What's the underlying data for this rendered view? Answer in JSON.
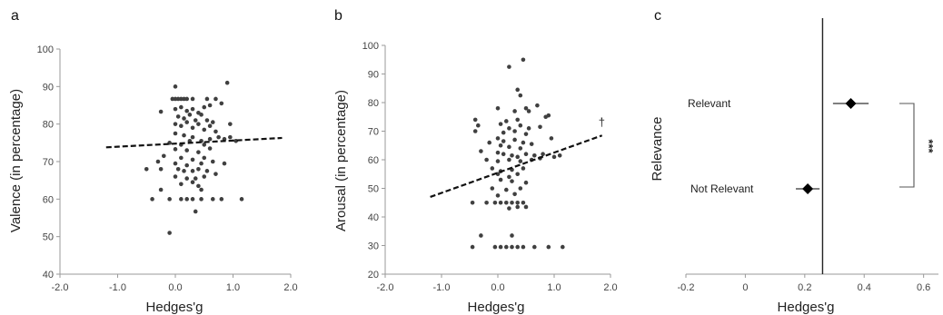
{
  "chart_data": [
    {
      "panel": "a",
      "type": "scatter",
      "xlabel": "Hedges'g",
      "ylabel": "Valence (in percentage)",
      "xlim": [
        -2.0,
        2.0
      ],
      "ylim": [
        40,
        100
      ],
      "xticks": [
        -2.0,
        -1.0,
        0.0,
        1.0,
        2.0
      ],
      "xtick_labels": [
        "-2.0",
        "-1.0",
        "0.0",
        "1.0",
        "2.0"
      ],
      "yticks": [
        40,
        50,
        60,
        70,
        80,
        90,
        100
      ],
      "ytick_labels": [
        "40",
        "50",
        "60",
        "70",
        "80",
        "90",
        "100"
      ],
      "trendline": {
        "x": [
          -1.2,
          1.85
        ],
        "y": [
          73.8,
          76.3
        ],
        "style": "dashed"
      },
      "points": [
        [
          -0.05,
          86.7
        ],
        [
          0.0,
          86.7
        ],
        [
          0.05,
          86.7
        ],
        [
          0.1,
          86.7
        ],
        [
          0.15,
          86.7
        ],
        [
          0.2,
          86.7
        ],
        [
          0.3,
          86.7
        ],
        [
          0.55,
          86.7
        ],
        [
          0.7,
          86.7
        ],
        [
          0.0,
          90.0
        ],
        [
          0.9,
          91.0
        ],
        [
          0.0,
          84.0
        ],
        [
          0.1,
          84.5
        ],
        [
          0.2,
          83.5
        ],
        [
          0.3,
          84.0
        ],
        [
          0.4,
          83.0
        ],
        [
          0.5,
          84.5
        ],
        [
          0.6,
          85.0
        ],
        [
          0.8,
          85.5
        ],
        [
          -0.25,
          83.3
        ],
        [
          0.05,
          82.0
        ],
        [
          0.15,
          81.5
        ],
        [
          0.25,
          82.5
        ],
        [
          0.35,
          81.0
        ],
        [
          0.45,
          82.5
        ],
        [
          0.55,
          81.0
        ],
        [
          0.65,
          80.5
        ],
        [
          0.95,
          80.0
        ],
        [
          0.0,
          80.0
        ],
        [
          0.1,
          79.5
        ],
        [
          0.2,
          80.5
        ],
        [
          0.3,
          79.0
        ],
        [
          0.4,
          80.0
        ],
        [
          0.5,
          78.5
        ],
        [
          0.6,
          79.5
        ],
        [
          0.7,
          78.0
        ],
        [
          0.0,
          77.5
        ],
        [
          0.15,
          77.0
        ],
        [
          0.3,
          76.5
        ],
        [
          0.45,
          75.5
        ],
        [
          0.6,
          76.0
        ],
        [
          0.75,
          76.5
        ],
        [
          0.85,
          76.0
        ],
        [
          0.95,
          76.5
        ],
        [
          1.05,
          75.5
        ],
        [
          -0.1,
          75.0
        ],
        [
          0.1,
          74.5
        ],
        [
          0.25,
          75.5
        ],
        [
          0.5,
          74.5
        ],
        [
          0.0,
          73.3
        ],
        [
          0.2,
          73.0
        ],
        [
          0.4,
          72.5
        ],
        [
          0.6,
          73.5
        ],
        [
          -0.2,
          71.5
        ],
        [
          0.1,
          71.0
        ],
        [
          0.3,
          70.5
        ],
        [
          0.5,
          71.0
        ],
        [
          -0.3,
          70.0
        ],
        [
          0.0,
          69.5
        ],
        [
          0.2,
          69.0
        ],
        [
          0.45,
          69.5
        ],
        [
          0.65,
          70.0
        ],
        [
          0.85,
          69.5
        ],
        [
          -0.5,
          68.0
        ],
        [
          -0.25,
          68.0
        ],
        [
          0.05,
          68.0
        ],
        [
          0.15,
          67.5
        ],
        [
          0.3,
          67.5
        ],
        [
          0.4,
          68.0
        ],
        [
          0.55,
          67.5
        ],
        [
          0.7,
          66.7
        ],
        [
          0.0,
          66.0
        ],
        [
          0.2,
          65.5
        ],
        [
          0.35,
          65.5
        ],
        [
          0.5,
          66.0
        ],
        [
          0.1,
          64.0
        ],
        [
          0.3,
          64.5
        ],
        [
          0.4,
          63.5
        ],
        [
          -0.25,
          62.5
        ],
        [
          0.45,
          62.5
        ],
        [
          -0.4,
          60.0
        ],
        [
          -0.1,
          60.0
        ],
        [
          0.1,
          60.0
        ],
        [
          0.2,
          60.0
        ],
        [
          0.3,
          60.0
        ],
        [
          0.45,
          60.0
        ],
        [
          0.65,
          60.0
        ],
        [
          0.8,
          60.0
        ],
        [
          1.15,
          60.0
        ],
        [
          0.35,
          56.7
        ],
        [
          -0.1,
          51.0
        ]
      ]
    },
    {
      "panel": "b",
      "type": "scatter",
      "xlabel": "Hedges'g",
      "ylabel": "Arousal (in percentage)",
      "xlim": [
        -2.0,
        2.0
      ],
      "ylim": [
        20,
        100
      ],
      "xticks": [
        -2.0,
        -1.0,
        0.0,
        1.0,
        2.0
      ],
      "xtick_labels": [
        "-2.0",
        "-1.0",
        "0.0",
        "1.0",
        "2.0"
      ],
      "yticks": [
        20,
        30,
        40,
        50,
        60,
        70,
        80,
        90,
        100
      ],
      "ytick_labels": [
        "20",
        "30",
        "40",
        "50",
        "60",
        "70",
        "80",
        "90",
        "100"
      ],
      "trendline": {
        "x": [
          -1.2,
          1.85
        ],
        "y": [
          47.0,
          68.5
        ],
        "style": "dashed"
      },
      "annotation": "†",
      "points": [
        [
          0.2,
          92.5
        ],
        [
          0.45,
          95.0
        ],
        [
          0.35,
          84.5
        ],
        [
          0.4,
          82.5
        ],
        [
          0.0,
          78.0
        ],
        [
          0.3,
          77.0
        ],
        [
          0.5,
          78.0
        ],
        [
          0.55,
          77.0
        ],
        [
          0.7,
          79.0
        ],
        [
          0.9,
          75.5
        ],
        [
          -0.4,
          74.0
        ],
        [
          0.15,
          73.5
        ],
        [
          0.35,
          74.0
        ],
        [
          0.85,
          75.0
        ],
        [
          -0.35,
          72.0
        ],
        [
          0.05,
          72.5
        ],
        [
          0.2,
          71.0
        ],
        [
          0.4,
          72.0
        ],
        [
          0.55,
          71.0
        ],
        [
          0.75,
          71.5
        ],
        [
          -0.4,
          70.0
        ],
        [
          0.1,
          69.5
        ],
        [
          0.3,
          70.0
        ],
        [
          0.5,
          69.0
        ],
        [
          0.0,
          67.5
        ],
        [
          0.1,
          66.5
        ],
        [
          0.3,
          67.0
        ],
        [
          0.45,
          66.0
        ],
        [
          0.95,
          67.5
        ],
        [
          -0.15,
          66.0
        ],
        [
          0.05,
          65.0
        ],
        [
          0.2,
          64.5
        ],
        [
          0.4,
          64.0
        ],
        [
          0.6,
          65.5
        ],
        [
          -0.3,
          63.0
        ],
        [
          0.0,
          62.5
        ],
        [
          0.1,
          62.0
        ],
        [
          0.25,
          61.5
        ],
        [
          0.35,
          61.0
        ],
        [
          0.5,
          62.0
        ],
        [
          0.65,
          61.5
        ],
        [
          0.8,
          62.0
        ],
        [
          1.0,
          61.0
        ],
        [
          1.1,
          61.5
        ],
        [
          -0.2,
          60.0
        ],
        [
          0.0,
          59.5
        ],
        [
          0.2,
          60.0
        ],
        [
          0.4,
          59.5
        ],
        [
          0.6,
          60.0
        ],
        [
          0.75,
          60.5
        ],
        [
          -0.1,
          57.0
        ],
        [
          0.05,
          56.0
        ],
        [
          0.25,
          56.5
        ],
        [
          0.45,
          57.0
        ],
        [
          0.0,
          55.0
        ],
        [
          0.2,
          54.0
        ],
        [
          0.35,
          55.0
        ],
        [
          0.05,
          53.0
        ],
        [
          0.25,
          52.5
        ],
        [
          0.5,
          52.0
        ],
        [
          -0.1,
          50.0
        ],
        [
          0.15,
          49.5
        ],
        [
          0.4,
          50.0
        ],
        [
          0.0,
          47.5
        ],
        [
          0.3,
          48.0
        ],
        [
          -0.45,
          45.0
        ],
        [
          -0.2,
          45.0
        ],
        [
          -0.05,
          45.0
        ],
        [
          0.05,
          45.0
        ],
        [
          0.15,
          45.0
        ],
        [
          0.25,
          45.0
        ],
        [
          0.35,
          45.0
        ],
        [
          0.45,
          45.0
        ],
        [
          0.5,
          43.5
        ],
        [
          0.2,
          43.0
        ],
        [
          0.35,
          43.5
        ],
        [
          -0.3,
          33.5
        ],
        [
          0.25,
          33.5
        ],
        [
          -0.45,
          29.5
        ],
        [
          -0.05,
          29.5
        ],
        [
          0.05,
          29.5
        ],
        [
          0.15,
          29.5
        ],
        [
          0.25,
          29.5
        ],
        [
          0.35,
          29.5
        ],
        [
          0.45,
          29.5
        ],
        [
          0.65,
          29.5
        ],
        [
          0.9,
          29.5
        ],
        [
          1.15,
          29.5
        ]
      ]
    },
    {
      "panel": "c",
      "type": "forest",
      "xlabel": "Hedges'g",
      "ylabel": "Relevance",
      "xlim": [
        -0.2,
        0.65
      ],
      "xticks": [
        -0.2,
        0.0,
        0.2,
        0.4,
        0.6
      ],
      "xtick_labels": [
        "-0.2",
        "0",
        "0.2",
        "0.4",
        "0.6"
      ],
      "reference_line_x": 0.26,
      "categories": [
        "Relevant",
        "Not Relevant"
      ],
      "estimates": [
        {
          "name": "Relevant",
          "value": 0.355,
          "ci": [
            0.295,
            0.415
          ]
        },
        {
          "name": "Not Relevant",
          "value": 0.21,
          "ci": [
            0.17,
            0.25
          ]
        }
      ],
      "significance": "***"
    }
  ],
  "labels": {
    "a": "a",
    "b": "b",
    "c": "c"
  }
}
